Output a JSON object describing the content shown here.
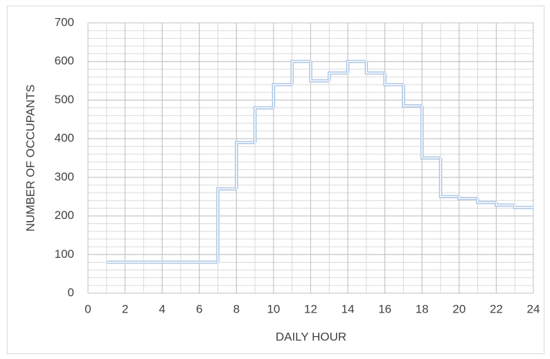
{
  "chart_data": {
    "type": "step",
    "x_label": "DAILY HOUR",
    "y_label": "NUMBER OF OCCUPANTS",
    "x": [
      1,
      2,
      3,
      4,
      5,
      6,
      7,
      8,
      9,
      10,
      11,
      12,
      13,
      14,
      15,
      16,
      17,
      18,
      19,
      20,
      21,
      22,
      23
    ],
    "values": [
      80,
      80,
      80,
      80,
      80,
      80,
      270,
      390,
      480,
      540,
      600,
      550,
      570,
      600,
      570,
      540,
      485,
      350,
      250,
      245,
      235,
      228,
      222
    ],
    "color": "#a9c4e4",
    "xlim": [
      0,
      24
    ],
    "xticks": [
      0,
      2,
      4,
      6,
      8,
      10,
      12,
      14,
      16,
      18,
      20,
      22,
      24
    ],
    "ylim": [
      0,
      700
    ],
    "yticks": [
      0,
      100,
      200,
      300,
      400,
      500,
      600,
      700
    ],
    "grid": true,
    "xgrid_step": 1,
    "ygrid_step": 20
  }
}
